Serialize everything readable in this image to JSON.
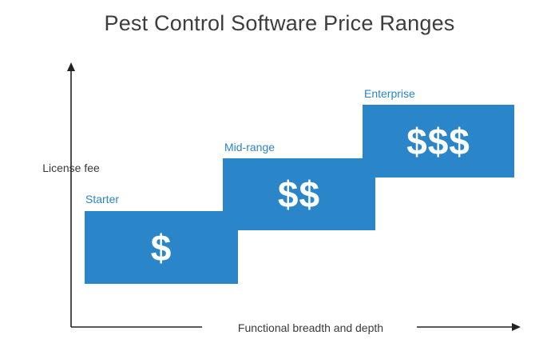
{
  "diagram": {
    "title": "Pest Control Software Price Ranges",
    "y_axis_label": "License fee",
    "x_axis_label": "Functional breadth and depth",
    "colors": {
      "tier_fill": "#2a86c8",
      "tier_label": "#2a86c8",
      "axis": "#222222"
    },
    "tiers": [
      {
        "label": "Starter",
        "symbol": "$"
      },
      {
        "label": "Mid-range",
        "symbol": "$$"
      },
      {
        "label": "Enterprise",
        "symbol": "$$$"
      }
    ]
  }
}
